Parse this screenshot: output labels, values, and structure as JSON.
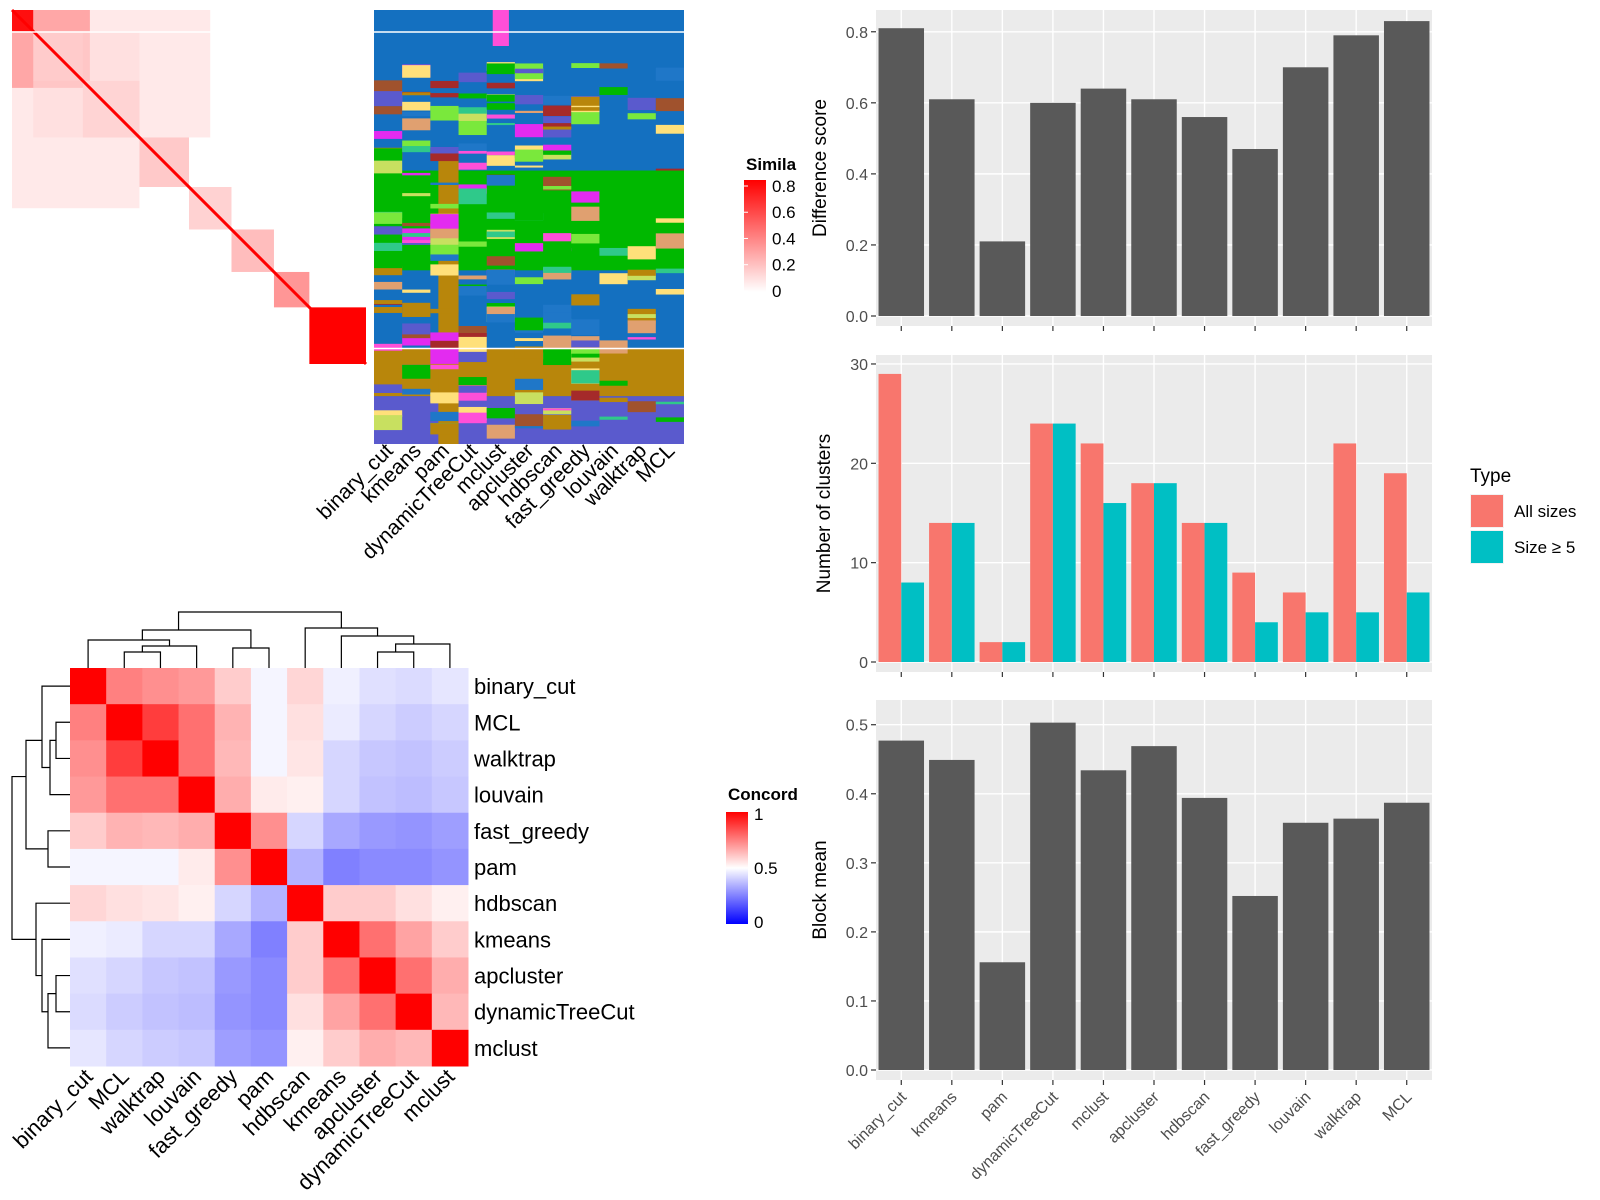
{
  "colors": {
    "bar_dark": "#595959",
    "panel_bg": "#ebebeb",
    "grid": "#ffffff",
    "all_sizes": "#f8766d",
    "size_ge5": "#00bfc4",
    "heat_high": "#ff0000",
    "heat_mid": "#ffffff",
    "heat_low": "#0000ff"
  },
  "similarity_panel": {
    "legend_title": "Simila",
    "legend_ticks": [
      "0.8",
      "0.6",
      "0.4",
      "0.2",
      "0"
    ],
    "methods": [
      "binary_cut",
      "kmeans",
      "pam",
      "dynamicTreeCut",
      "mclust",
      "apcluster",
      "hdbscan",
      "fast_greedy",
      "louvain",
      "walktrap",
      "MCL"
    ]
  },
  "concordance_panel": {
    "legend_title": "Concord",
    "legend_ticks": [
      "1",
      "0.5",
      "0"
    ],
    "methods": [
      "binary_cut",
      "MCL",
      "walktrap",
      "louvain",
      "fast_greedy",
      "pam",
      "hdbscan",
      "kmeans",
      "apcluster",
      "dynamicTreeCut",
      "mclust"
    ],
    "matrix": [
      [
        1.0,
        0.75,
        0.72,
        0.7,
        0.6,
        0.48,
        0.58,
        0.47,
        0.44,
        0.43,
        0.45
      ],
      [
        0.75,
        1.0,
        0.88,
        0.78,
        0.65,
        0.48,
        0.56,
        0.46,
        0.42,
        0.4,
        0.42
      ],
      [
        0.72,
        0.88,
        1.0,
        0.78,
        0.64,
        0.48,
        0.55,
        0.42,
        0.39,
        0.38,
        0.4
      ],
      [
        0.7,
        0.78,
        0.78,
        1.0,
        0.66,
        0.54,
        0.53,
        0.42,
        0.38,
        0.37,
        0.39
      ],
      [
        0.6,
        0.65,
        0.64,
        0.66,
        1.0,
        0.72,
        0.42,
        0.33,
        0.3,
        0.29,
        0.31
      ],
      [
        0.48,
        0.48,
        0.48,
        0.54,
        0.72,
        1.0,
        0.35,
        0.25,
        0.27,
        0.27,
        0.29
      ],
      [
        0.58,
        0.56,
        0.55,
        0.53,
        0.42,
        0.35,
        1.0,
        0.6,
        0.6,
        0.56,
        0.53
      ],
      [
        0.47,
        0.46,
        0.42,
        0.42,
        0.33,
        0.25,
        0.6,
        1.0,
        0.78,
        0.68,
        0.6
      ],
      [
        0.44,
        0.42,
        0.39,
        0.38,
        0.3,
        0.27,
        0.6,
        0.78,
        1.0,
        0.78,
        0.66
      ],
      [
        0.43,
        0.4,
        0.38,
        0.37,
        0.29,
        0.27,
        0.56,
        0.68,
        0.78,
        1.0,
        0.64
      ],
      [
        0.45,
        0.42,
        0.4,
        0.39,
        0.31,
        0.29,
        0.53,
        0.6,
        0.66,
        0.64,
        1.0
      ]
    ]
  },
  "chart_data": [
    {
      "type": "bar",
      "categories": [
        "binary_cut",
        "kmeans",
        "pam",
        "dynamicTreeCut",
        "mclust",
        "apcluster",
        "hdbscan",
        "fast_greedy",
        "louvain",
        "walktrap",
        "MCL"
      ],
      "values": [
        0.81,
        0.61,
        0.21,
        0.6,
        0.64,
        0.61,
        0.56,
        0.47,
        0.7,
        0.79,
        0.83
      ],
      "ylabel": "Difference score",
      "ylim": [
        0,
        0.85
      ],
      "yticks": [
        "0.0",
        "0.2",
        "0.4",
        "0.6",
        "0.8"
      ],
      "grid": true
    },
    {
      "type": "bar",
      "categories": [
        "binary_cut",
        "kmeans",
        "pam",
        "dynamicTreeCut",
        "mclust",
        "apcluster",
        "hdbscan",
        "fast_greedy",
        "louvain",
        "walktrap",
        "MCL"
      ],
      "series": [
        {
          "name": "All sizes",
          "values": [
            29,
            14,
            2,
            24,
            22,
            18,
            14,
            9,
            7,
            22,
            19
          ]
        },
        {
          "name": "Size ≥ 5",
          "values": [
            8,
            14,
            2,
            24,
            16,
            18,
            14,
            4,
            5,
            5,
            7
          ]
        }
      ],
      "ylabel": "Number of clusters",
      "ylim": [
        0,
        30.5
      ],
      "yticks": [
        "0",
        "10",
        "20",
        "30"
      ],
      "legend_title": "Type",
      "legend_position": "right",
      "grid": true
    },
    {
      "type": "bar",
      "categories": [
        "binary_cut",
        "kmeans",
        "pam",
        "dynamicTreeCut",
        "mclust",
        "apcluster",
        "hdbscan",
        "fast_greedy",
        "louvain",
        "walktrap",
        "MCL"
      ],
      "values": [
        0.477,
        0.449,
        0.156,
        0.503,
        0.434,
        0.469,
        0.394,
        0.252,
        0.358,
        0.364,
        0.387
      ],
      "ylabel": "Block mean",
      "ylim": [
        0,
        0.53
      ],
      "yticks": [
        "0.0",
        "0.1",
        "0.2",
        "0.3",
        "0.4",
        "0.5"
      ],
      "grid": true
    }
  ]
}
